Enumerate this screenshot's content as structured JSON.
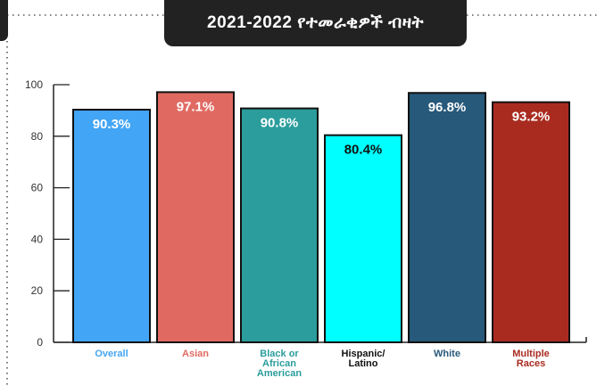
{
  "chart_data": {
    "type": "bar",
    "title": "2021-2022 የተመራቂዎች ብዛት",
    "categories": [
      "Overall",
      "Asian",
      "Black or African American",
      "Hispanic/ Latino",
      "White",
      "Multiple Races"
    ],
    "category_lines": [
      [
        "Overall"
      ],
      [
        "Asian"
      ],
      [
        "Black or",
        "African",
        "American"
      ],
      [
        "Hispanic/",
        "Latino"
      ],
      [
        "White"
      ],
      [
        "Multiple",
        "Races"
      ]
    ],
    "values": [
      90.3,
      97.1,
      90.8,
      80.4,
      96.8,
      93.2
    ],
    "value_labels": [
      "90.3%",
      "97.1%",
      "90.8%",
      "80.4%",
      "96.8%",
      "93.2%"
    ],
    "bar_colors": [
      "#42a5f5",
      "#e06a62",
      "#2a9d9c",
      "#00ffff",
      "#27597a",
      "#a92b20"
    ],
    "label_colors": [
      "#42a5f5",
      "#e06a62",
      "#2a9d9c",
      "#111111",
      "#27597a",
      "#a92b20"
    ],
    "value_label_colors": [
      "#ffffff",
      "#ffffff",
      "#ffffff",
      "#111111",
      "#ffffff",
      "#ffffff"
    ],
    "yticks": [
      0,
      20,
      40,
      60,
      80,
      100
    ],
    "ylim": [
      0,
      100
    ],
    "xlabel": "",
    "ylabel": "",
    "grid": false,
    "legend": "none"
  }
}
